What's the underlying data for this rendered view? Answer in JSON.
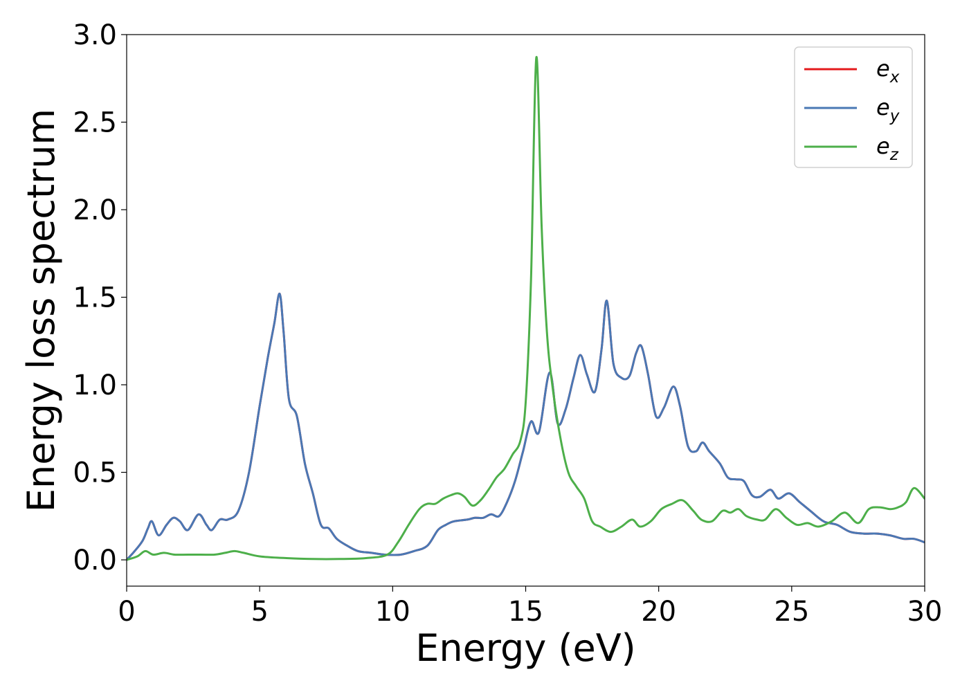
{
  "chart_data": {
    "type": "line",
    "title": "",
    "xlabel": "Energy (eV)",
    "ylabel": "Energy loss spectrum",
    "xlim": [
      0,
      30
    ],
    "ylim": [
      -0.15,
      3.0
    ],
    "xticks": [
      0,
      5,
      10,
      15,
      20,
      25,
      30
    ],
    "xtick_labels": [
      "0",
      "5",
      "10",
      "15",
      "20",
      "25",
      "30"
    ],
    "yticks": [
      0.0,
      0.5,
      1.0,
      1.5,
      2.0,
      2.5,
      3.0
    ],
    "ytick_labels": [
      "0.0",
      "0.5",
      "1.0",
      "1.5",
      "2.0",
      "2.5",
      "3.0"
    ],
    "grid": false,
    "legend_position": "top-right",
    "series": [
      {
        "name": "e_x",
        "legend_base": "e",
        "legend_sub": "x",
        "color": "#e41a1c",
        "x": [
          0,
          0.3,
          0.6,
          0.8,
          0.95,
          1.2,
          1.5,
          1.75,
          2.0,
          2.3,
          2.7,
          3.0,
          3.2,
          3.5,
          3.8,
          4.2,
          4.6,
          5.0,
          5.3,
          5.55,
          5.75,
          5.9,
          6.1,
          6.4,
          6.7,
          7.0,
          7.3,
          7.6,
          7.9,
          8.3,
          8.7,
          9.2,
          9.7,
          10.3,
          10.8,
          11.3,
          11.7,
          12.0,
          12.3,
          12.8,
          13.1,
          13.4,
          13.7,
          14.0,
          14.3,
          14.6,
          14.9,
          15.2,
          15.5,
          15.9,
          16.2,
          16.5,
          16.8,
          17.05,
          17.3,
          17.6,
          17.85,
          18.05,
          18.3,
          18.6,
          18.9,
          19.15,
          19.35,
          19.6,
          19.9,
          20.2,
          20.55,
          20.8,
          21.1,
          21.4,
          21.65,
          21.9,
          22.3,
          22.6,
          22.9,
          23.2,
          23.5,
          23.8,
          24.2,
          24.5,
          24.9,
          25.3,
          25.7,
          26.2,
          26.7,
          27.2,
          27.7,
          28.2,
          28.7,
          29.2,
          29.6,
          30.0
        ],
        "y": [
          0.0,
          0.05,
          0.11,
          0.18,
          0.22,
          0.14,
          0.2,
          0.24,
          0.22,
          0.17,
          0.26,
          0.2,
          0.17,
          0.23,
          0.23,
          0.28,
          0.5,
          0.88,
          1.15,
          1.35,
          1.52,
          1.3,
          0.92,
          0.82,
          0.55,
          0.38,
          0.2,
          0.18,
          0.12,
          0.08,
          0.05,
          0.04,
          0.03,
          0.03,
          0.05,
          0.08,
          0.17,
          0.2,
          0.22,
          0.23,
          0.24,
          0.24,
          0.26,
          0.25,
          0.33,
          0.45,
          0.62,
          0.79,
          0.73,
          1.07,
          0.78,
          0.86,
          1.04,
          1.17,
          1.06,
          0.96,
          1.2,
          1.48,
          1.12,
          1.04,
          1.05,
          1.18,
          1.22,
          1.06,
          0.82,
          0.87,
          0.99,
          0.88,
          0.65,
          0.62,
          0.67,
          0.62,
          0.55,
          0.47,
          0.46,
          0.45,
          0.37,
          0.36,
          0.4,
          0.35,
          0.38,
          0.33,
          0.28,
          0.22,
          0.2,
          0.16,
          0.15,
          0.15,
          0.14,
          0.12,
          0.12,
          0.1
        ]
      },
      {
        "name": "e_y",
        "legend_base": "e",
        "legend_sub": "y",
        "color": "#4a78b4",
        "x": [
          0,
          0.3,
          0.6,
          0.8,
          0.95,
          1.2,
          1.5,
          1.75,
          2.0,
          2.3,
          2.7,
          3.0,
          3.2,
          3.5,
          3.8,
          4.2,
          4.6,
          5.0,
          5.3,
          5.55,
          5.75,
          5.9,
          6.1,
          6.4,
          6.7,
          7.0,
          7.3,
          7.6,
          7.9,
          8.3,
          8.7,
          9.2,
          9.7,
          10.3,
          10.8,
          11.3,
          11.7,
          12.0,
          12.3,
          12.8,
          13.1,
          13.4,
          13.7,
          14.0,
          14.3,
          14.6,
          14.9,
          15.2,
          15.5,
          15.9,
          16.2,
          16.5,
          16.8,
          17.05,
          17.3,
          17.6,
          17.85,
          18.05,
          18.3,
          18.6,
          18.9,
          19.15,
          19.35,
          19.6,
          19.9,
          20.2,
          20.55,
          20.8,
          21.1,
          21.4,
          21.65,
          21.9,
          22.3,
          22.6,
          22.9,
          23.2,
          23.5,
          23.8,
          24.2,
          24.5,
          24.9,
          25.3,
          25.7,
          26.2,
          26.7,
          27.2,
          27.7,
          28.2,
          28.7,
          29.2,
          29.6,
          30.0
        ],
        "y": [
          0.0,
          0.05,
          0.11,
          0.18,
          0.22,
          0.14,
          0.2,
          0.24,
          0.22,
          0.17,
          0.26,
          0.2,
          0.17,
          0.23,
          0.23,
          0.28,
          0.5,
          0.88,
          1.15,
          1.35,
          1.52,
          1.3,
          0.92,
          0.82,
          0.55,
          0.38,
          0.2,
          0.18,
          0.12,
          0.08,
          0.05,
          0.04,
          0.03,
          0.03,
          0.05,
          0.08,
          0.17,
          0.2,
          0.22,
          0.23,
          0.24,
          0.24,
          0.26,
          0.25,
          0.33,
          0.45,
          0.62,
          0.79,
          0.73,
          1.07,
          0.78,
          0.86,
          1.04,
          1.17,
          1.06,
          0.96,
          1.2,
          1.48,
          1.12,
          1.04,
          1.05,
          1.18,
          1.22,
          1.06,
          0.82,
          0.87,
          0.99,
          0.88,
          0.65,
          0.62,
          0.67,
          0.62,
          0.55,
          0.47,
          0.46,
          0.45,
          0.37,
          0.36,
          0.4,
          0.35,
          0.38,
          0.33,
          0.28,
          0.22,
          0.2,
          0.16,
          0.15,
          0.15,
          0.14,
          0.12,
          0.12,
          0.1
        ]
      },
      {
        "name": "e_z",
        "legend_base": "e",
        "legend_sub": "z",
        "color": "#4daf4a",
        "x": [
          0,
          0.4,
          0.7,
          1.0,
          1.4,
          1.8,
          2.3,
          2.8,
          3.3,
          3.7,
          4.05,
          4.4,
          5.0,
          6.0,
          7.0,
          8.0,
          9.0,
          9.8,
          10.2,
          10.6,
          11.0,
          11.3,
          11.6,
          11.9,
          12.2,
          12.45,
          12.7,
          13.0,
          13.3,
          13.6,
          13.9,
          14.2,
          14.5,
          14.8,
          15.0,
          15.2,
          15.4,
          15.6,
          15.8,
          16.0,
          16.3,
          16.6,
          16.9,
          17.2,
          17.5,
          17.8,
          18.2,
          18.6,
          19.0,
          19.3,
          19.7,
          20.1,
          20.5,
          20.9,
          21.3,
          21.6,
          22.0,
          22.4,
          22.7,
          23.0,
          23.3,
          23.7,
          24.0,
          24.4,
          24.8,
          25.2,
          25.6,
          26.0,
          26.5,
          27.0,
          27.5,
          27.9,
          28.3,
          28.7,
          29.0,
          29.3,
          29.6,
          30.0
        ],
        "y": [
          0.0,
          0.02,
          0.05,
          0.03,
          0.04,
          0.03,
          0.03,
          0.03,
          0.03,
          0.04,
          0.05,
          0.04,
          0.02,
          0.01,
          0.005,
          0.005,
          0.01,
          0.03,
          0.1,
          0.2,
          0.29,
          0.32,
          0.32,
          0.35,
          0.37,
          0.38,
          0.36,
          0.31,
          0.34,
          0.4,
          0.47,
          0.52,
          0.6,
          0.68,
          0.9,
          1.6,
          2.87,
          1.9,
          1.3,
          1.0,
          0.7,
          0.5,
          0.42,
          0.35,
          0.22,
          0.19,
          0.16,
          0.19,
          0.23,
          0.19,
          0.22,
          0.29,
          0.32,
          0.34,
          0.28,
          0.23,
          0.22,
          0.28,
          0.27,
          0.29,
          0.25,
          0.23,
          0.23,
          0.29,
          0.24,
          0.2,
          0.21,
          0.19,
          0.22,
          0.27,
          0.21,
          0.29,
          0.3,
          0.29,
          0.3,
          0.33,
          0.41,
          0.35
        ]
      }
    ]
  }
}
